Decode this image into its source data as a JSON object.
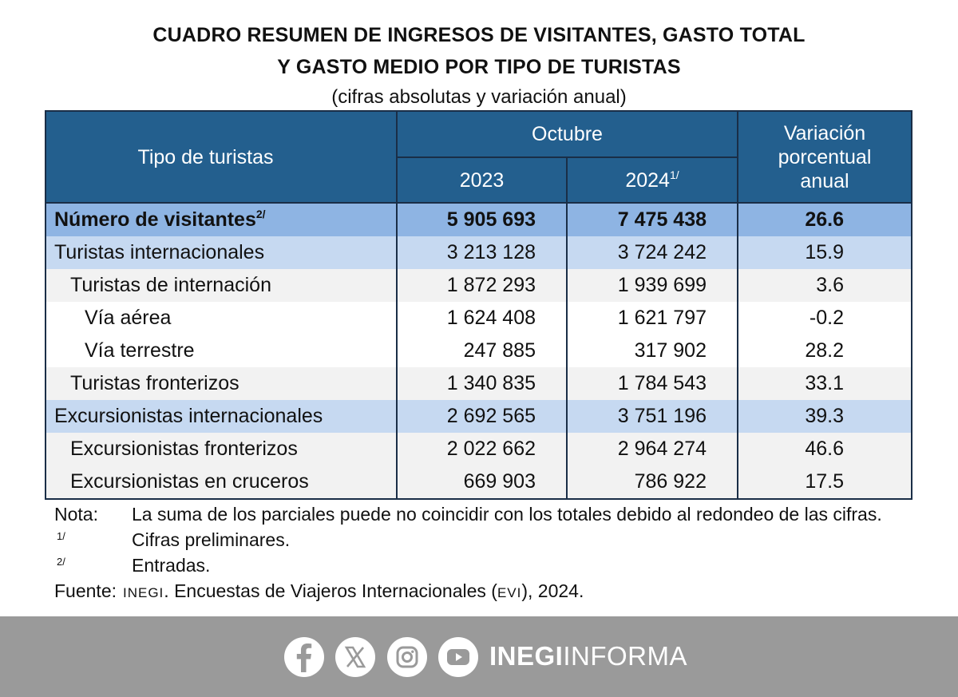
{
  "header": {
    "title_line1": "CUADRO RESUMEN DE INGRESOS DE VISITANTES, GASTO TOTAL",
    "title_line2": "Y GASTO MEDIO POR TIPO DE TURISTAS",
    "subtitle": "(cifras absolutas y variación anual)"
  },
  "table": {
    "col_tipo": "Tipo de turistas",
    "col_period": "Octubre",
    "col_year1": "2023",
    "col_year2": "2024",
    "col_year2_note": "1/",
    "col_var_line1": "Variación",
    "col_var_line2": "porcentual",
    "col_var_line3": "anual",
    "rows": [
      {
        "label": "Número de visitantes",
        "note": "2/",
        "v2023": "5 905 693",
        "v2024": "7 475 438",
        "var": "26.6"
      },
      {
        "label": "Turistas internacionales",
        "v2023": "3 213 128",
        "v2024": "3 724 242",
        "var": "15.9"
      },
      {
        "label": "Turistas de internación",
        "v2023": "1 872 293",
        "v2024": "1 939 699",
        "var": "3.6"
      },
      {
        "label": "Vía aérea",
        "v2023": "1 624 408",
        "v2024": "1 621 797",
        "var": "-0.2"
      },
      {
        "label": "Vía terrestre",
        "v2023": "247 885",
        "v2024": "317 902",
        "var": "28.2"
      },
      {
        "label": "Turistas fronterizos",
        "v2023": "1 340 835",
        "v2024": "1 784 543",
        "var": "33.1"
      },
      {
        "label": "Excursionistas internacionales",
        "v2023": "2 692 565",
        "v2024": "3 751 196",
        "var": "39.3"
      },
      {
        "label": "Excursionistas fronterizos",
        "v2023": "2 022 662",
        "v2024": "2 964 274",
        "var": "46.6"
      },
      {
        "label": "Excursionistas en cruceros",
        "v2023": "669 903",
        "v2024": "786 922",
        "var": "17.5"
      }
    ]
  },
  "notes": {
    "nota_key": "Nota:",
    "nota_text": "La suma de los parciales puede no coincidir con los totales debido al redondeo de las cifras.",
    "n1_key": "1/",
    "n1_text": "Cifras preliminares.",
    "n2_key": "2/",
    "n2_text": "Entradas.",
    "fuente_key": "Fuente:",
    "fuente_org": "INEGI",
    "fuente_text_a": ". Encuestas de Viajeros Internacionales (",
    "fuente_abbr": "EVI",
    "fuente_text_b": "), 2024."
  },
  "footer": {
    "brand_bold": "INEGI",
    "brand_light": "INFORMA",
    "icons": [
      "facebook-icon",
      "x-icon",
      "instagram-icon",
      "youtube-icon"
    ],
    "bg_color": "#9a9a9a"
  },
  "colors": {
    "header_blue": "#235f8e",
    "total_row": "#8eb4e3",
    "group_row": "#c6d9f1",
    "shaded_row": "#f2f2f2"
  }
}
